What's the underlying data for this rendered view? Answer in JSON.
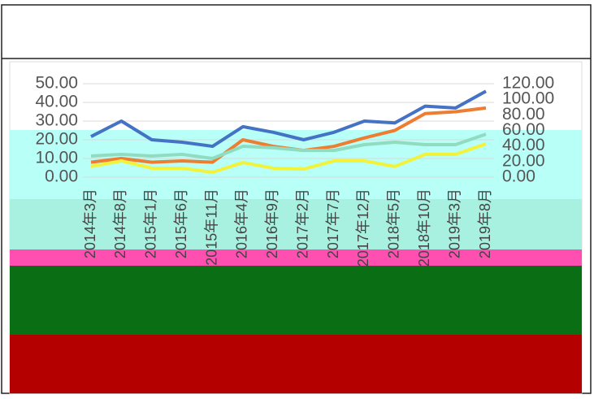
{
  "chart_data": {
    "type": "line",
    "categories": [
      "2014年3月",
      "2014年8月",
      "2015年1月",
      "2015年6月",
      "2015年11月",
      "2016年4月",
      "2016年9月",
      "2017年2月",
      "2017年7月",
      "2017年12月",
      "2018年5月",
      "2018年10月",
      "2019年3月",
      "2019年8月"
    ],
    "series": [
      {
        "color": "#4472c4",
        "values": [
          21.7,
          30,
          20,
          18.7,
          16.5,
          27,
          24,
          20,
          24,
          30,
          29,
          38,
          37,
          46
        ]
      },
      {
        "color": "#ed7d31",
        "values": [
          8,
          10,
          8,
          8.7,
          8,
          20,
          16.5,
          14.3,
          16.5,
          21,
          25,
          34,
          35,
          37
        ]
      },
      {
        "color": "#8fdcc0",
        "values": [
          11.3,
          12.2,
          11.3,
          12.2,
          10,
          16.5,
          15.7,
          14.3,
          14.3,
          17.4,
          18.7,
          17.4,
          17.4,
          23
        ]
      },
      {
        "color": "#f2f23a",
        "values": [
          5.7,
          8.7,
          4.8,
          4.8,
          2.6,
          7.8,
          4.8,
          4.3,
          8.7,
          8.7,
          5.7,
          12.2,
          12.2,
          17.8
        ]
      }
    ],
    "ylim": [
      0,
      50
    ],
    "yticks": [
      {
        "value": 0,
        "label": "0.00"
      },
      {
        "value": 10,
        "label": "10.00"
      },
      {
        "value": 20,
        "label": "20.00"
      },
      {
        "value": 30,
        "label": "30.00"
      },
      {
        "value": 40,
        "label": "40.00"
      },
      {
        "value": 50,
        "label": "50.00"
      }
    ],
    "y2lim": [
      0,
      120
    ],
    "y2ticks": [
      {
        "value": 0,
        "label": "0.00"
      },
      {
        "value": 20,
        "label": "20.00"
      },
      {
        "value": 40,
        "label": "40.00"
      },
      {
        "value": 60,
        "label": "60.00"
      },
      {
        "value": 80,
        "label": "80.00"
      },
      {
        "value": 100,
        "label": "100.00"
      },
      {
        "value": 120,
        "label": "120.00"
      }
    ],
    "grid": true
  }
}
